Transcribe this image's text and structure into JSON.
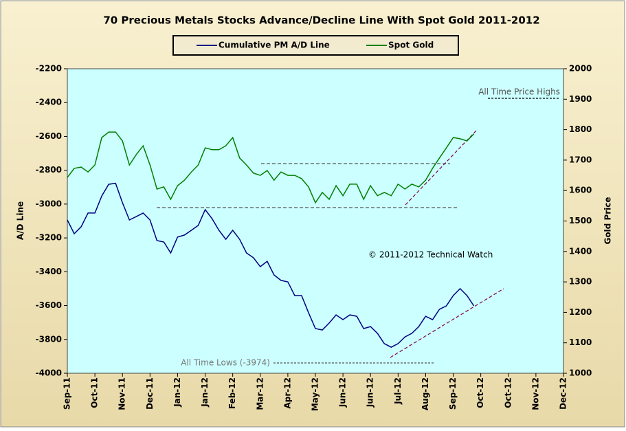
{
  "chart_data": {
    "type": "line",
    "title": "70 Precious Metals Stocks Advance/Decline Line With Spot Gold 2011-2012",
    "ylabel": "A/D Line",
    "y2label": "Gold Price",
    "annotations": [
      "All Time Price Highs",
      "All Time Lows (-3974)",
      "© 2011-2012  Technical Watch"
    ],
    "categories": [
      "Sep-11",
      null,
      null,
      null,
      "Oct-11",
      null,
      null,
      null,
      "Nov-11",
      null,
      null,
      null,
      "Dec-11",
      null,
      null,
      null,
      "Jan-12",
      null,
      null,
      null,
      "Jan-12",
      null,
      null,
      null,
      "Feb-12",
      null,
      null,
      null,
      "Mar-12",
      null,
      null,
      null,
      "Apr-12",
      null,
      null,
      null,
      "May-12",
      null,
      null,
      null,
      "Jun-12",
      null,
      null,
      null,
      "Jun-12",
      null,
      null,
      null,
      "Jul-12",
      null,
      null,
      null,
      "Aug-12",
      null,
      null,
      null,
      "Sep-12",
      null,
      null,
      null,
      "Oct-12",
      null,
      null,
      null,
      "Oct-12",
      null,
      null,
      null,
      "Nov-12",
      null,
      null,
      null,
      "Dec-12"
    ],
    "series": [
      {
        "name": "Cumulative PM A/D Line",
        "color": "#000080",
        "axis": "y",
        "values": [
          -3094,
          -3175,
          -3134,
          -3053,
          -3053,
          -2952,
          -2883,
          -2877,
          -2992,
          -3094,
          -3074,
          -3053,
          -3094,
          -3216,
          -3224,
          -3289,
          -3195,
          -3183,
          -3155,
          -3126,
          -3033,
          -3086,
          -3155,
          -3208,
          -3155,
          -3208,
          -3289,
          -3317,
          -3370,
          -3338,
          -3419,
          -3451,
          -3460,
          -3541,
          -3541,
          -3642,
          -3736,
          -3744,
          -3703,
          -3655,
          -3683,
          -3655,
          -3663,
          -3736,
          -3724,
          -3764,
          -3825,
          -3846,
          -3825,
          -3785,
          -3764,
          -3724,
          -3663,
          -3683,
          -3622,
          -3602,
          -3541,
          -3500,
          -3541,
          -3602,
          null,
          null,
          null,
          null,
          null,
          null,
          null,
          null,
          null,
          null,
          null,
          null,
          null
        ]
      },
      {
        "name": "Spot Gold",
        "color": "#008000",
        "axis": "y2",
        "values": [
          1643,
          1673,
          1677,
          1661,
          1684,
          1774,
          1792,
          1792,
          1763,
          1684,
          1718,
          1747,
          1684,
          1605,
          1612,
          1571,
          1616,
          1634,
          1661,
          1684,
          1740,
          1734,
          1734,
          1747,
          1774,
          1707,
          1684,
          1657,
          1650,
          1666,
          1634,
          1661,
          1650,
          1650,
          1639,
          1612,
          1560,
          1594,
          1571,
          1616,
          1583,
          1621,
          1621,
          1571,
          1616,
          1583,
          1594,
          1583,
          1621,
          1605,
          1621,
          1612,
          1634,
          1673,
          1707,
          1740,
          1774,
          1770,
          1763,
          1786,
          null,
          null,
          null,
          null,
          null,
          null,
          null,
          null,
          null,
          null,
          null,
          null,
          null
        ]
      }
    ],
    "ylim": [
      -4000,
      -2200
    ],
    "yticks": [
      -4000,
      -3800,
      -3600,
      -3400,
      -3200,
      -3000,
      -2800,
      -2600,
      -2400,
      -2200
    ],
    "y2lim": [
      1000,
      2000
    ],
    "y2ticks": [
      1000,
      1100,
      1200,
      1300,
      1400,
      1500,
      1600,
      1700,
      1800,
      1900,
      2000
    ],
    "legend": "top"
  }
}
